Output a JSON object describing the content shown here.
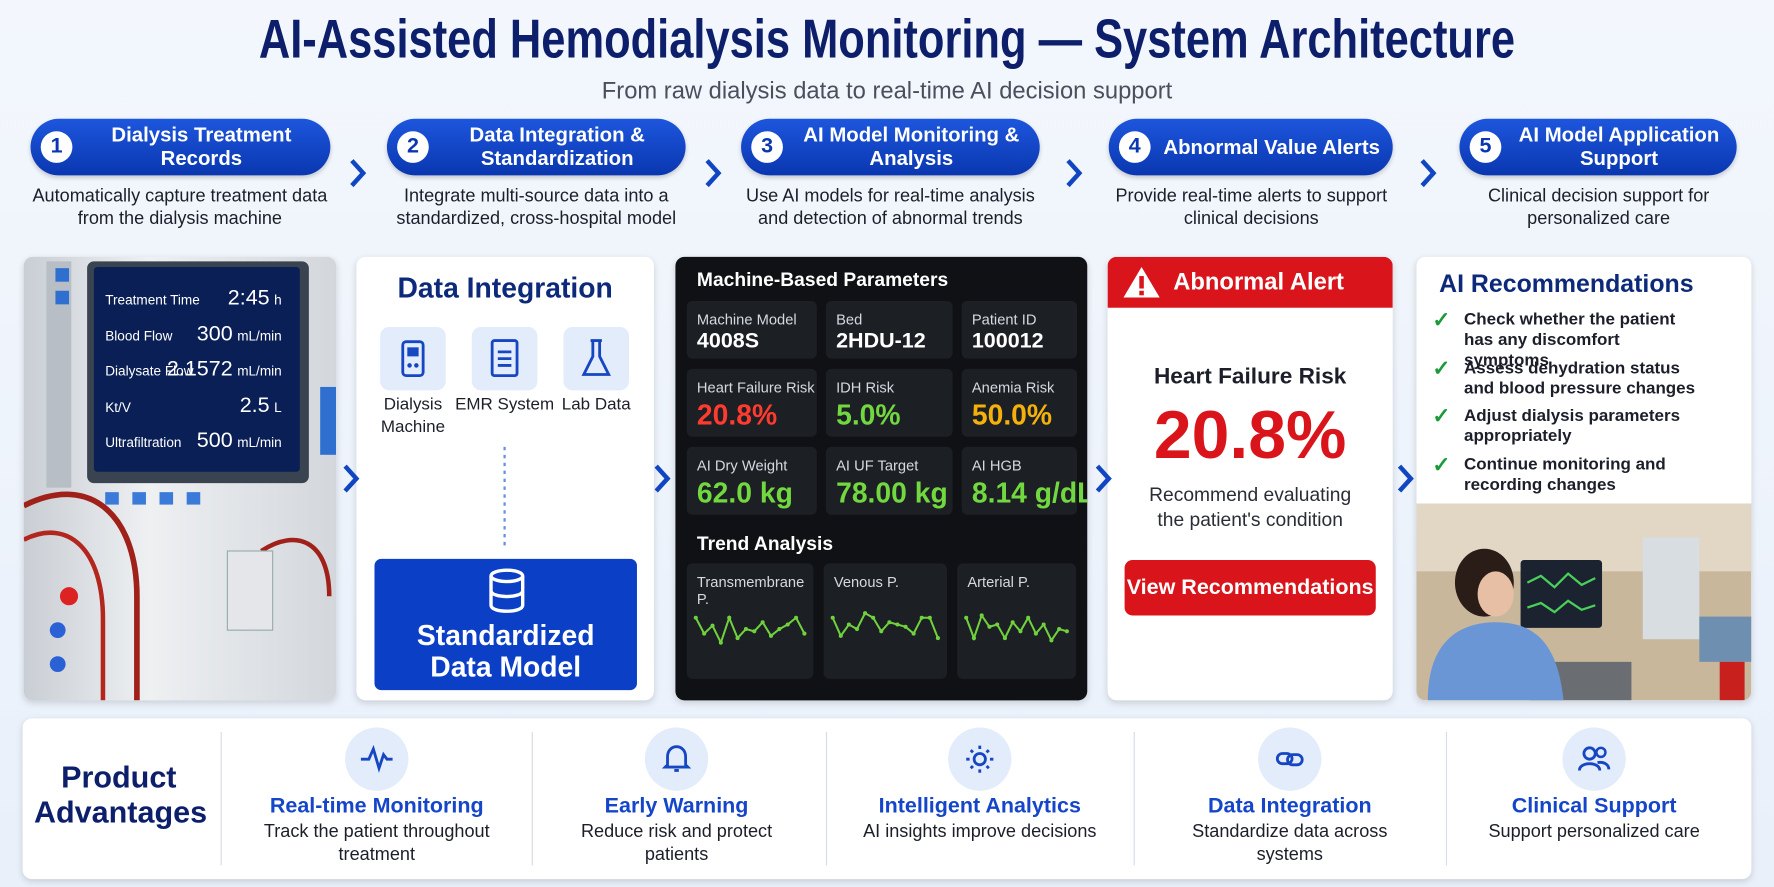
{
  "header": {
    "title": "AI-Assisted Hemodialysis Monitoring — System Architecture",
    "subtitle": "From raw dialysis data to real-time AI decision support"
  },
  "steps": [
    {
      "number": "1",
      "title": "Dialysis Treatment Records",
      "description": "Automatically capture treatment data from the dialysis machine"
    },
    {
      "number": "2",
      "title": "Data Integration & Standardization",
      "description": "Integrate multi-source data into a standardized, cross-hospital model"
    },
    {
      "number": "3",
      "title": "AI Model Monitoring & Analysis",
      "description": "Use AI models for real-time analysis and detection of abnormal trends"
    },
    {
      "number": "4",
      "title": "Abnormal Value Alerts",
      "description": "Provide real-time alerts to support clinical decisions"
    },
    {
      "number": "5",
      "title": "AI Model Application Support",
      "description": "Clinical decision support for personalized care"
    }
  ],
  "machine_screen": {
    "rows": [
      {
        "label": "Treatment Time",
        "value": "2:45",
        "unit": "h"
      },
      {
        "label": "Blood Flow",
        "value": "300",
        "unit": "mL/min"
      },
      {
        "label": "Dialysate Flow",
        "value": "2.1572",
        "unit": "mL/min"
      },
      {
        "label": "Kt/V",
        "value": "2.5",
        "unit": "L"
      },
      {
        "label": "Ultrafiltration",
        "value": "500",
        "unit": "mL/min"
      }
    ]
  },
  "data_integration": {
    "title": "Data Integration",
    "sources": [
      "Dialysis Machine",
      "EMR System",
      "Lab Data"
    ],
    "model": "Standardized Data Model"
  },
  "parameters": {
    "title": "Machine-Based Parameters",
    "cells": [
      {
        "label": "Machine Model",
        "value": "4008S"
      },
      {
        "label": "Bed",
        "value": "2HDU-12"
      },
      {
        "label": "Patient ID",
        "value": "100012"
      },
      {
        "label": "Heart Failure Risk",
        "value": "20.8%"
      },
      {
        "label": "IDH Risk",
        "value": "5.0%"
      },
      {
        "label": "Anemia Risk",
        "value": "50.0%"
      },
      {
        "label": "AI Dry Weight",
        "value": "62.0 kg"
      },
      {
        "label": "AI UF Target",
        "value": "78.00 kg"
      },
      {
        "label": "AI HGB",
        "value": "8.14 g/dL"
      }
    ],
    "trend_title": "Trend Analysis",
    "trends": [
      "Transmembrane P.",
      "Venous P.",
      "Arterial P."
    ]
  },
  "alert": {
    "title": "Abnormal Alert",
    "metric": "Heart Failure Risk",
    "value": "20.8%",
    "note": "Recommend evaluating the patient's condition",
    "button": "View Recommendations"
  },
  "recommendations": {
    "title": "AI Recommendations",
    "items": [
      "Check whether the patient has any discomfort symptoms",
      "Assess dehydration status and blood pressure changes",
      "Adjust dialysis parameters appropriately",
      "Continue monitoring and recording changes"
    ]
  },
  "advantages": {
    "title": "Product Advantages",
    "items": [
      {
        "title": "Real-time Monitoring",
        "description": "Track the patient throughout treatment"
      },
      {
        "title": "Early Warning",
        "description": "Reduce risk and protect patients"
      },
      {
        "title": "Intelligent Analytics",
        "description": "AI insights improve decisions"
      },
      {
        "title": "Data Integration",
        "description": "Standardize data across systems"
      },
      {
        "title": "Clinical Support",
        "description": "Support personalized care"
      }
    ]
  }
}
